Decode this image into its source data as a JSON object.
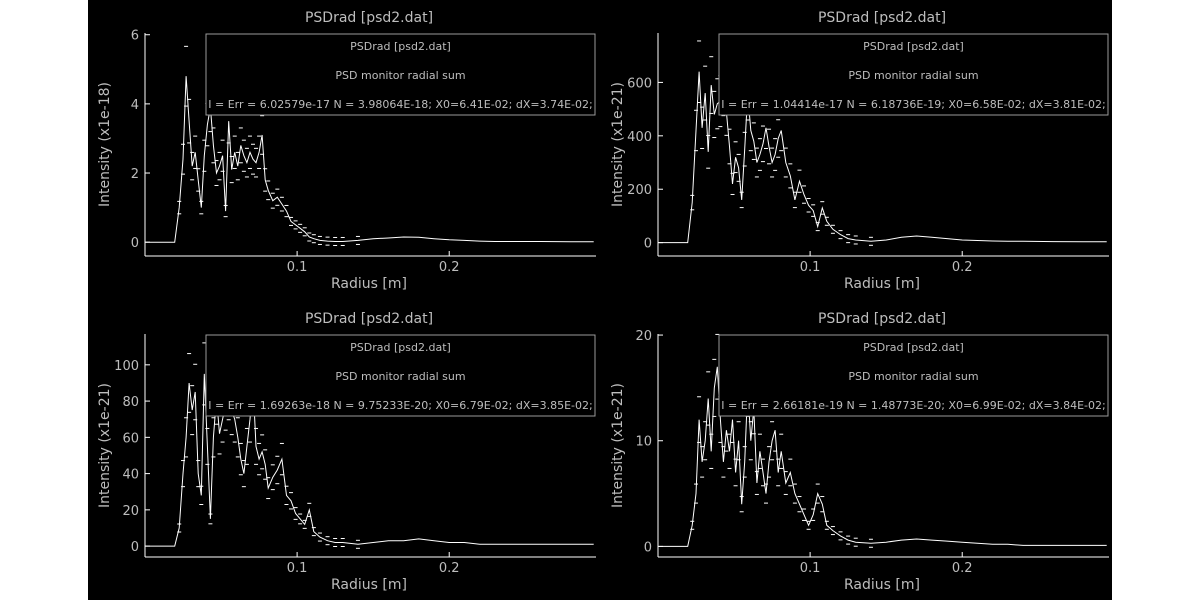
{
  "colors": {
    "background": "#000000",
    "foreground": "#ffffff",
    "text": "#bdbdbd",
    "legend_border": "#9a9a9a"
  },
  "chart_data": [
    {
      "type": "line",
      "title": "PSDrad [psd2.dat]",
      "xlabel": "Radius [m]",
      "ylabel": "Intensity (x1e-18)",
      "xlim": [
        0.0,
        0.2965
      ],
      "ylim": [
        -0.4,
        6.05
      ],
      "xticks": [
        0.1,
        0.2
      ],
      "xtick_labels": [
        "0.1",
        "0.2"
      ],
      "yticks": [
        0,
        2,
        4,
        6
      ],
      "ytick_labels": [
        "0",
        "2",
        "4",
        "6"
      ],
      "legend": {
        "position": "top-right",
        "lines": [
          "PSDrad [psd2.dat]",
          "PSD monitor radial sum",
          "I = Err = 6.02579e-17 N = 3.98064E-18; X0=6.41E-02; dX=3.74E-02;"
        ]
      },
      "series": [
        {
          "x": [
            0.0,
            0.0195,
            0.0225,
            0.025,
            0.027,
            0.029,
            0.031,
            0.033,
            0.035,
            0.037,
            0.039,
            0.041,
            0.043,
            0.045,
            0.047,
            0.049,
            0.051,
            0.053,
            0.055,
            0.057,
            0.059,
            0.061,
            0.063,
            0.065,
            0.067,
            0.069,
            0.071,
            0.073,
            0.075,
            0.077,
            0.079,
            0.081,
            0.084,
            0.087,
            0.09,
            0.093,
            0.096,
            0.099,
            0.102,
            0.105,
            0.108,
            0.111,
            0.115,
            0.12,
            0.125,
            0.13,
            0.14,
            0.15,
            0.16,
            0.17,
            0.18,
            0.19,
            0.2,
            0.21,
            0.22,
            0.23,
            0.24,
            0.26,
            0.28,
            0.295
          ],
          "y": [
            0,
            0,
            1.0,
            2.4,
            4.8,
            3.5,
            2.2,
            2.6,
            1.8,
            1.0,
            2.5,
            3.4,
            3.9,
            2.8,
            2.0,
            2.2,
            2.5,
            0.9,
            3.5,
            2.1,
            2.6,
            2.2,
            2.8,
            2.5,
            2.3,
            2.6,
            2.4,
            2.3,
            2.6,
            3.1,
            1.8,
            1.5,
            1.2,
            1.3,
            1.1,
            0.9,
            0.6,
            0.5,
            0.4,
            0.3,
            0.15,
            0.1,
            0.05,
            0.03,
            0.02,
            0.02,
            0.05,
            0.1,
            0.12,
            0.15,
            0.14,
            0.1,
            0.07,
            0.05,
            0.03,
            0.02,
            0.02,
            0.02,
            0.01,
            0.01
          ]
        }
      ]
    },
    {
      "type": "line",
      "title": "PSDrad [psd2.dat]",
      "xlabel": "Radius [m]",
      "ylabel": "Intensity (x1e-21)",
      "xlim": [
        0.0,
        0.2965
      ],
      "ylim": [
        -50,
        785
      ],
      "xticks": [
        0.1,
        0.2
      ],
      "xtick_labels": [
        "0.1",
        "0.2"
      ],
      "yticks": [
        0,
        200,
        400,
        600
      ],
      "ytick_labels": [
        "0",
        "200",
        "400",
        "600"
      ],
      "legend": {
        "position": "top-right",
        "lines": [
          "PSDrad [psd2.dat]",
          "PSD monitor radial sum",
          "I = Err = 1.04414e-17 N = 6.18736E-19; X0=6.58E-02; dX=3.81E-02;"
        ]
      },
      "series": [
        {
          "x": [
            0.0,
            0.0195,
            0.0225,
            0.025,
            0.027,
            0.029,
            0.031,
            0.033,
            0.035,
            0.037,
            0.039,
            0.041,
            0.043,
            0.045,
            0.047,
            0.049,
            0.051,
            0.053,
            0.055,
            0.057,
            0.059,
            0.061,
            0.063,
            0.065,
            0.067,
            0.069,
            0.071,
            0.073,
            0.075,
            0.077,
            0.079,
            0.081,
            0.084,
            0.087,
            0.09,
            0.093,
            0.096,
            0.099,
            0.102,
            0.105,
            0.108,
            0.111,
            0.115,
            0.12,
            0.125,
            0.13,
            0.14,
            0.15,
            0.16,
            0.17,
            0.18,
            0.19,
            0.2,
            0.21,
            0.22,
            0.23,
            0.24,
            0.26,
            0.28,
            0.295
          ],
          "y": [
            0,
            0,
            150,
            420,
            640,
            430,
            560,
            340,
            590,
            480,
            520,
            530,
            580,
            490,
            360,
            220,
            320,
            280,
            160,
            350,
            560,
            420,
            380,
            300,
            330,
            370,
            430,
            360,
            300,
            330,
            390,
            420,
            300,
            250,
            160,
            230,
            180,
            140,
            120,
            60,
            130,
            80,
            50,
            30,
            15,
            10,
            5,
            10,
            20,
            25,
            20,
            15,
            10,
            8,
            6,
            5,
            5,
            4,
            3,
            3
          ]
        }
      ]
    },
    {
      "type": "line",
      "title": "PSDrad [psd2.dat]",
      "xlabel": "Radius [m]",
      "ylabel": "Intensity (x1e-21)",
      "xlim": [
        0.0,
        0.2965
      ],
      "ylim": [
        -6,
        117
      ],
      "xticks": [
        0.1,
        0.2
      ],
      "xtick_labels": [
        "0.1",
        "0.2"
      ],
      "yticks": [
        0,
        20,
        40,
        60,
        80,
        100
      ],
      "ytick_labels": [
        "0",
        "20",
        "40",
        "60",
        "80",
        "100"
      ],
      "legend": {
        "position": "top-right",
        "lines": [
          "PSDrad [psd2.dat]",
          "PSD monitor radial sum",
          "I = Err = 1.69263e-18 N = 9.75233E-20; X0=6.79E-02; dX=3.85E-02;"
        ]
      },
      "series": [
        {
          "x": [
            0.0,
            0.0195,
            0.0225,
            0.025,
            0.027,
            0.029,
            0.031,
            0.033,
            0.035,
            0.037,
            0.039,
            0.041,
            0.043,
            0.045,
            0.047,
            0.049,
            0.051,
            0.053,
            0.055,
            0.057,
            0.059,
            0.061,
            0.063,
            0.065,
            0.067,
            0.069,
            0.071,
            0.073,
            0.075,
            0.077,
            0.079,
            0.081,
            0.084,
            0.087,
            0.09,
            0.093,
            0.096,
            0.099,
            0.102,
            0.105,
            0.108,
            0.111,
            0.115,
            0.12,
            0.125,
            0.13,
            0.14,
            0.15,
            0.16,
            0.17,
            0.18,
            0.19,
            0.2,
            0.21,
            0.22,
            0.23,
            0.24,
            0.26,
            0.28,
            0.295
          ],
          "y": [
            0,
            0,
            10,
            40,
            60,
            90,
            75,
            85,
            40,
            28,
            95,
            55,
            15,
            60,
            82,
            62,
            70,
            78,
            85,
            75,
            70,
            60,
            48,
            40,
            55,
            70,
            90,
            55,
            48,
            52,
            45,
            32,
            38,
            42,
            48,
            28,
            25,
            18,
            15,
            12,
            20,
            8,
            5,
            3,
            2,
            2,
            1,
            2,
            3,
            3,
            4,
            3,
            2,
            2,
            1,
            1,
            1,
            1,
            1,
            1
          ]
        }
      ]
    },
    {
      "type": "line",
      "title": "PSDrad [psd2.dat]",
      "xlabel": "Radius [m]",
      "ylabel": "Intensity (x1e-21)",
      "xlim": [
        0.0,
        0.2965
      ],
      "ylim": [
        -1.0,
        20.1
      ],
      "xticks": [
        0.1,
        0.2
      ],
      "xtick_labels": [
        "0.1",
        "0.2"
      ],
      "yticks": [
        0,
        10,
        20
      ],
      "ytick_labels": [
        "0",
        "10",
        "20"
      ],
      "legend": {
        "position": "top-right",
        "lines": [
          "PSDrad [psd2.dat]",
          "PSD monitor radial sum",
          "I = Err = 2.66181e-19 N = 1.48773E-20; X0=6.99E-02; dX=3.84E-02;"
        ]
      },
      "series": [
        {
          "x": [
            0.0,
            0.0195,
            0.0225,
            0.025,
            0.027,
            0.029,
            0.031,
            0.033,
            0.035,
            0.037,
            0.039,
            0.041,
            0.043,
            0.045,
            0.047,
            0.049,
            0.051,
            0.053,
            0.055,
            0.057,
            0.059,
            0.061,
            0.063,
            0.065,
            0.067,
            0.069,
            0.071,
            0.073,
            0.075,
            0.077,
            0.079,
            0.081,
            0.084,
            0.087,
            0.09,
            0.093,
            0.096,
            0.099,
            0.102,
            0.105,
            0.108,
            0.111,
            0.115,
            0.12,
            0.125,
            0.13,
            0.14,
            0.15,
            0.16,
            0.17,
            0.18,
            0.19,
            0.2,
            0.21,
            0.22,
            0.23,
            0.24,
            0.26,
            0.28,
            0.295
          ],
          "y": [
            0,
            0,
            2,
            5,
            12,
            8,
            10,
            14,
            9,
            15,
            17,
            12,
            8,
            11,
            9,
            12,
            7,
            10,
            4,
            8,
            15,
            10,
            13,
            6,
            9,
            7,
            5,
            8,
            10,
            11,
            7,
            9,
            6,
            7,
            5,
            4,
            3,
            2,
            3,
            5,
            4,
            2,
            1.5,
            1,
            0.6,
            0.4,
            0.3,
            0.4,
            0.6,
            0.7,
            0.6,
            0.5,
            0.4,
            0.3,
            0.2,
            0.2,
            0.1,
            0.1,
            0.1,
            0.1
          ]
        }
      ]
    }
  ]
}
